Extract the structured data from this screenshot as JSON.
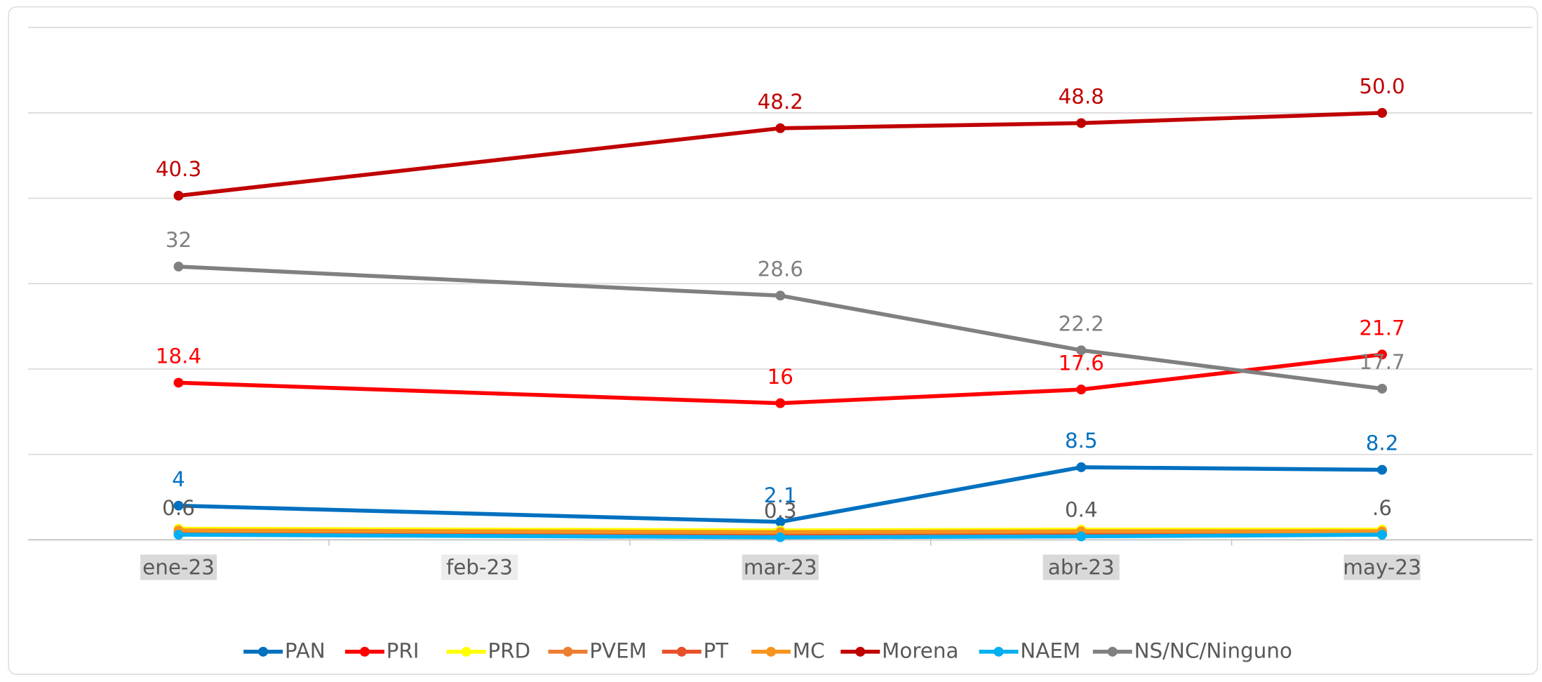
{
  "chart_data": {
    "type": "line",
    "categories": [
      "ene-23",
      "feb-23",
      "mar-23",
      "abr-23",
      "may-23"
    ],
    "ylim": [
      0,
      60
    ],
    "yticks": [
      0,
      10,
      20,
      30,
      40,
      50,
      60
    ],
    "grid": true,
    "legend": "bottom",
    "series": [
      {
        "name": "PAN",
        "color": "#0070c0",
        "values": [
          4,
          null,
          2.1,
          8.5,
          8.2
        ],
        "value_labels": [
          "4",
          null,
          "2.1",
          "8.5",
          "8.2"
        ]
      },
      {
        "name": "PRI",
        "color": "#ff0000",
        "values": [
          18.4,
          null,
          16,
          17.6,
          21.7
        ],
        "value_labels": [
          "18.4",
          null,
          "16",
          "17.6",
          "21.7"
        ]
      },
      {
        "name": "PRD",
        "color": "#ffff00",
        "values": [
          1.3,
          null,
          1.1,
          1.2,
          1.2
        ]
      },
      {
        "name": "PVEM",
        "color": "#ed7d31",
        "values": [
          0.8,
          null,
          0.6,
          0.7,
          0.7
        ]
      },
      {
        "name": "PT",
        "color": "#e8502a",
        "values": [
          1,
          null,
          0.7,
          0.8,
          0.8
        ]
      },
      {
        "name": "MC",
        "color": "#f7941d",
        "values": [
          1.1,
          null,
          0.9,
          1,
          1
        ]
      },
      {
        "name": "Morena",
        "color": "#c00000",
        "values": [
          40.3,
          null,
          48.2,
          48.8,
          50
        ],
        "value_labels": [
          "40.3",
          null,
          "48.2",
          "48.8",
          "50.0"
        ]
      },
      {
        "name": "NAEM",
        "color": "#00b0f0",
        "values": [
          0.6,
          null,
          0.3,
          0.4,
          0.6
        ],
        "value_labels": [
          "0.6",
          null,
          "0.3",
          "0.4",
          ".6"
        ],
        "label_color": "#595959"
      },
      {
        "name": "NS/NC/Ninguno",
        "color": "#808080",
        "values": [
          32,
          null,
          28.6,
          22.2,
          17.7
        ],
        "value_labels": [
          "32",
          null,
          "28.6",
          "22.2",
          "17.7"
        ]
      }
    ]
  }
}
